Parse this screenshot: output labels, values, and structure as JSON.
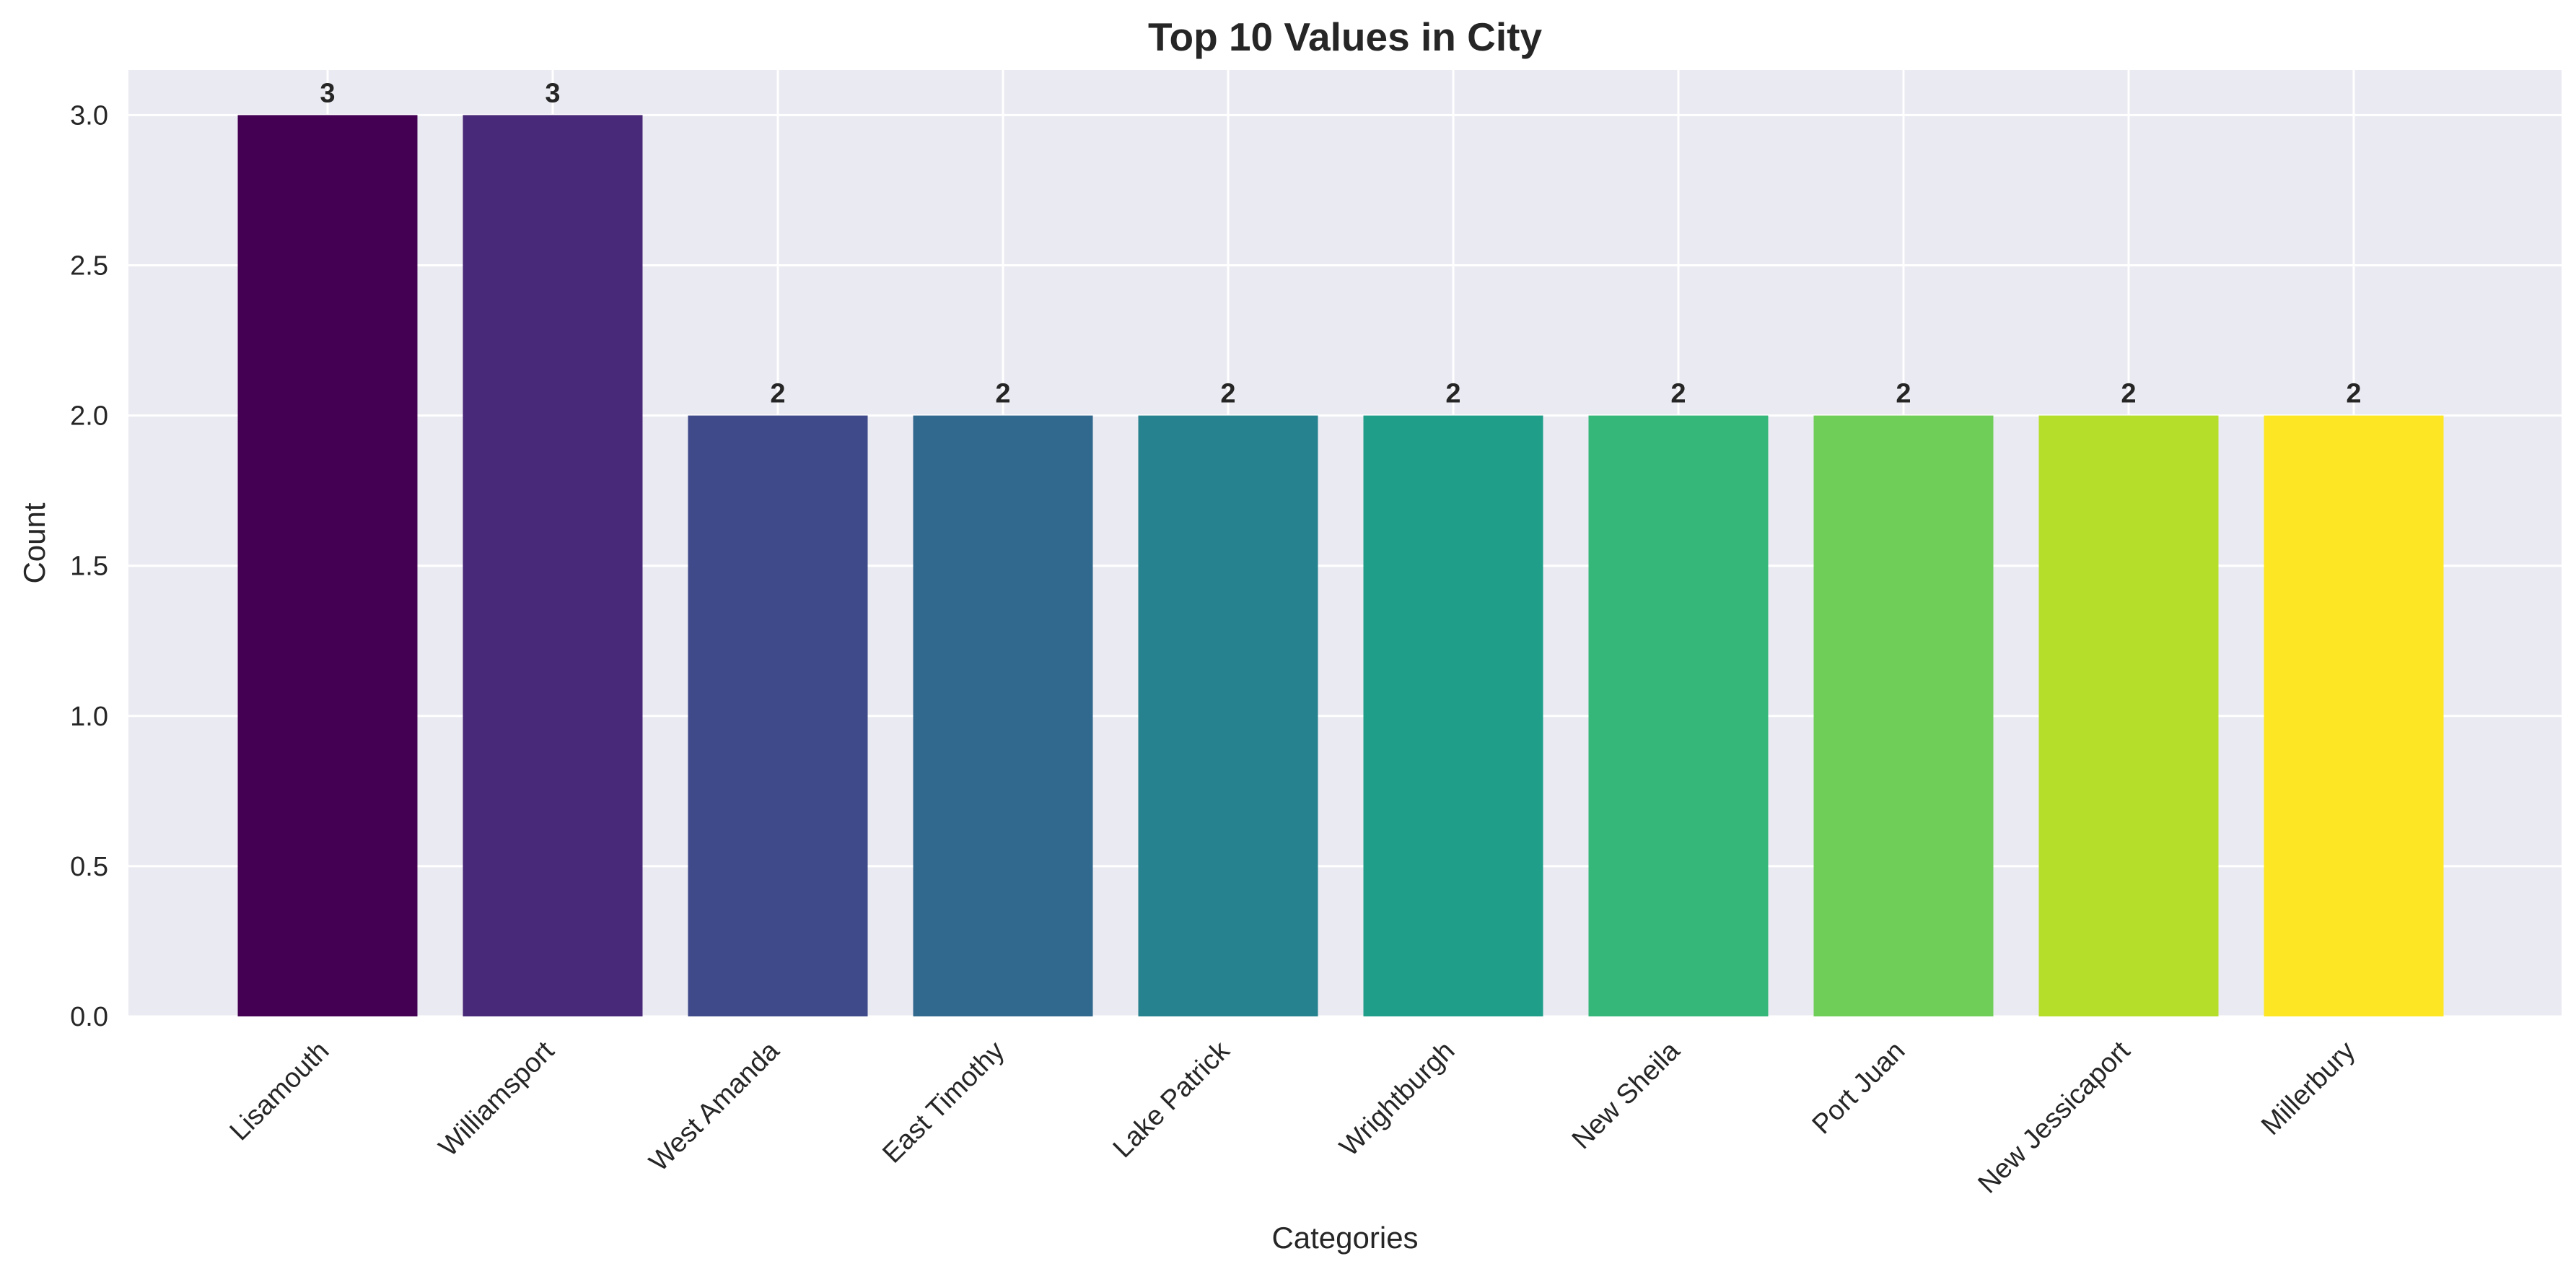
{
  "chart_data": {
    "type": "bar",
    "title": "Top 10 Values in City",
    "xlabel": "Categories",
    "ylabel": "Count",
    "categories": [
      "Lisamouth",
      "Williamsport",
      "West Amanda",
      "East Timothy",
      "Lake Patrick",
      "Wrightburgh",
      "New Sheila",
      "Port Juan",
      "New Jessicaport",
      "Millerbury"
    ],
    "values": [
      3,
      3,
      2,
      2,
      2,
      2,
      2,
      2,
      2,
      2
    ],
    "data_labels": [
      "3",
      "3",
      "2",
      "2",
      "2",
      "2",
      "2",
      "2",
      "2",
      "2"
    ],
    "colors": [
      "#440154",
      "#482878",
      "#3e4a89",
      "#31688e",
      "#26828e",
      "#1f9e89",
      "#35b779",
      "#6ece58",
      "#b5de2b",
      "#fde725"
    ],
    "y_ticks": [
      "0.0",
      "0.5",
      "1.0",
      "1.5",
      "2.0",
      "2.5",
      "3.0"
    ],
    "ylim": [
      0,
      3.15
    ],
    "grid": true,
    "plot_background": "#eaeaf2",
    "grid_color": "#ffffff",
    "text_color": "#262626"
  }
}
